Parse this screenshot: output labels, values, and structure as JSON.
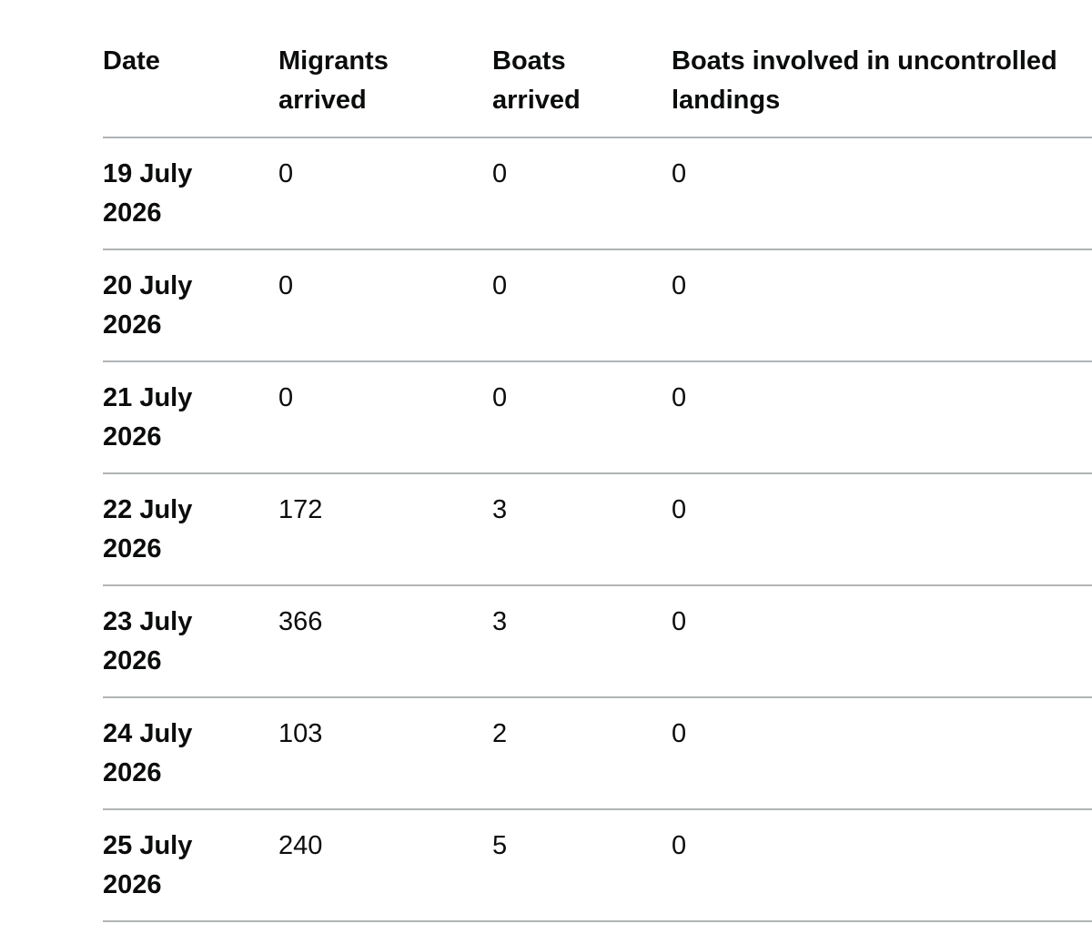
{
  "table": {
    "headers": [
      "Date",
      "Migrants arrived",
      "Boats arrived",
      "Boats involved in uncontrolled landings"
    ],
    "rows": [
      [
        "19 July 2026",
        0,
        0,
        0
      ],
      [
        "20 July 2026",
        0,
        0,
        0
      ],
      [
        "21 July 2026",
        0,
        0,
        0
      ],
      [
        "22 July 2026",
        172,
        3,
        0
      ],
      [
        "23 July 2026",
        366,
        3,
        0
      ],
      [
        "24 July 2026",
        103,
        2,
        0
      ],
      [
        "25 July 2026",
        240,
        5,
        0
      ]
    ]
  }
}
